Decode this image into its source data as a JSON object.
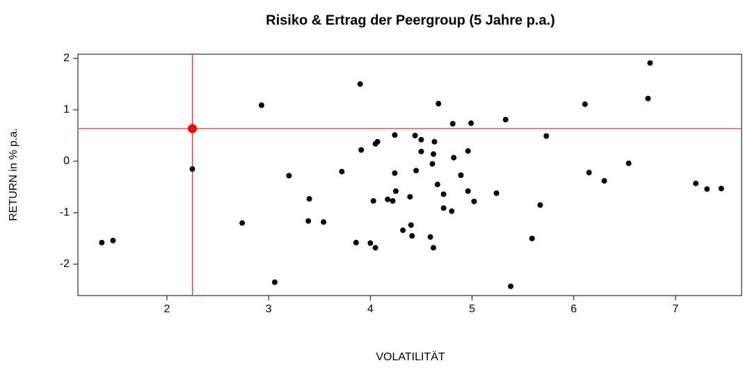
{
  "chart_data": {
    "type": "scatter",
    "title": "Risiko & Ertrag der Peergroup (5 Jahre p.a.)",
    "x_label": "VOLATILITÄT",
    "y_label": "RETURN  in % p.a.",
    "xlim": [
      1.125,
      7.65
    ],
    "ylim": [
      -2.61,
      2.08
    ],
    "xticks": [
      2,
      3,
      4,
      5,
      6,
      7
    ],
    "yticks": [
      -2,
      -1,
      0,
      1,
      2
    ],
    "reference_line_color": "#e03a3a",
    "series": [
      {
        "color": "#000000",
        "x": [
          1.36,
          1.47,
          2.25,
          2.74,
          2.93,
          3.06,
          3.2,
          3.39,
          3.4,
          3.54,
          3.72,
          3.86,
          3.9,
          3.91,
          4.0,
          4.03,
          4.05,
          4.05,
          4.07,
          4.17,
          4.22,
          4.24,
          4.24,
          4.25,
          4.32,
          4.39,
          4.4,
          4.41,
          4.44,
          4.45,
          4.5,
          4.5,
          4.59,
          4.61,
          4.62,
          4.62,
          4.63,
          4.67,
          4.66,
          4.72,
          4.72,
          4.8,
          4.81,
          4.82,
          4.89,
          4.96,
          4.96,
          4.99,
          5.02,
          5.24,
          5.33,
          5.38,
          5.59,
          5.67,
          5.73,
          6.11,
          6.15,
          6.3,
          6.54,
          6.73,
          6.75,
          7.2,
          7.31,
          7.45
        ],
        "y": [
          -1.58,
          -1.54,
          -0.15,
          -1.2,
          1.09,
          -2.35,
          -0.28,
          -1.16,
          -0.73,
          -1.18,
          -0.2,
          -1.58,
          1.5,
          0.22,
          -1.59,
          -0.77,
          -1.68,
          0.34,
          0.38,
          -0.74,
          -0.77,
          -0.23,
          0.51,
          -0.58,
          -1.34,
          -0.69,
          -1.24,
          -1.45,
          0.5,
          -0.18,
          0.42,
          0.19,
          -1.47,
          -0.05,
          -1.68,
          0.14,
          0.38,
          1.12,
          -0.45,
          -0.64,
          -0.91,
          -0.97,
          0.73,
          0.07,
          -0.27,
          0.2,
          -0.58,
          0.74,
          -0.78,
          -0.62,
          0.81,
          -2.43,
          -1.5,
          -0.85,
          0.49,
          1.11,
          -0.22,
          -0.38,
          -0.04,
          1.22,
          1.91,
          -0.43,
          -0.54,
          -0.53
        ]
      },
      {
        "color": "#ff0000",
        "x": [
          2.25
        ],
        "y": [
          0.635
        ]
      }
    ]
  }
}
